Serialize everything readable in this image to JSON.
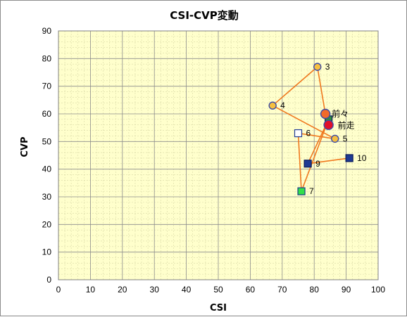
{
  "chart_data": {
    "type": "scatter",
    "title": "CSI-CVP変動",
    "xlabel": "CSI",
    "ylabel": "CVP",
    "xlim": [
      0,
      100
    ],
    "ylim": [
      0,
      90
    ],
    "x_ticks": [
      "0",
      "10",
      "20",
      "30",
      "40",
      "50",
      "60",
      "70",
      "80",
      "90",
      "100"
    ],
    "y_ticks": [
      "0",
      "10",
      "20",
      "30",
      "40",
      "50",
      "60",
      "70",
      "80",
      "90"
    ],
    "grid": true,
    "colors": {
      "plot_bg": "#FFFFCC",
      "grid_major": "#8C8C8C",
      "grid_minor": "#D9D9A6",
      "line": "#F0781E"
    },
    "path_order": [
      "10",
      "9",
      "8",
      "7",
      "6",
      "5",
      "4",
      "3",
      "前々",
      "前走"
    ],
    "points": [
      {
        "label": "10",
        "x": 91,
        "y": 44,
        "marker": "square",
        "fill": "#1F3A93",
        "stroke": "#0A1A5A"
      },
      {
        "label": "9",
        "x": 78,
        "y": 42,
        "marker": "square",
        "fill": "#1F3A93",
        "stroke": "#0A1A5A"
      },
      {
        "label": "",
        "x": 84.5,
        "y": 58,
        "marker": "square",
        "fill": "#2E8B3E",
        "stroke": "#0A1A5A"
      },
      {
        "label": "7",
        "x": 76,
        "y": 32,
        "marker": "square",
        "fill": "#33E04A",
        "stroke": "#1A3A8A"
      },
      {
        "label": "6",
        "x": 75,
        "y": 53,
        "marker": "square",
        "fill": "#FFFFFF",
        "stroke": "#1F3A93"
      },
      {
        "label": "5",
        "x": 86.5,
        "y": 51,
        "marker": "circle",
        "fill": "#F6C040",
        "stroke": "#3A4AA8"
      },
      {
        "label": "4",
        "x": 67,
        "y": 63,
        "marker": "circle",
        "fill": "#F6C040",
        "stroke": "#3A4AA8"
      },
      {
        "label": "3",
        "x": 81,
        "y": 77,
        "marker": "circle",
        "fill": "#F6C040",
        "stroke": "#3A4AA8"
      },
      {
        "label": "前々",
        "x": 83.5,
        "y": 60,
        "marker": "circle-large",
        "fill": "#F06A2A",
        "stroke": "#3A4AA8"
      },
      {
        "label": "前走",
        "x": 84.5,
        "y": 56,
        "marker": "circle-large",
        "fill": "#E0102A",
        "stroke": "#3A4AA8"
      }
    ]
  }
}
